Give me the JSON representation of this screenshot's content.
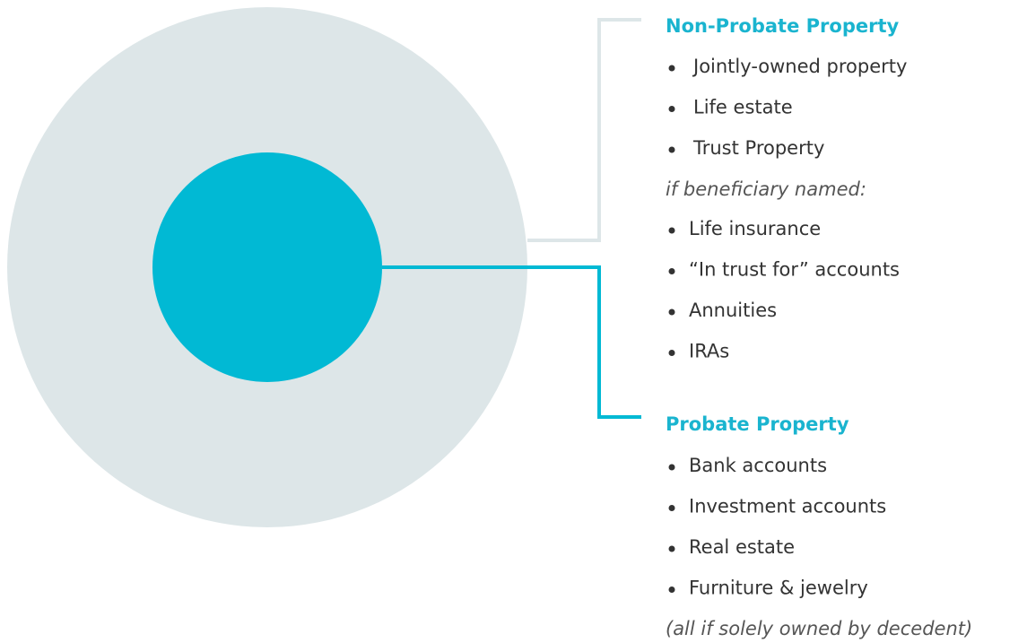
{
  "non_probate": {
    "title": "Non-Probate Property",
    "items": [
      "Jointly-owned property",
      "Life estate",
      "Trust Property"
    ],
    "condition": "if beneficiary named:",
    "conditional_items": [
      "Life insurance",
      "“In trust for” accounts",
      "Annuities",
      "IRAs"
    ]
  },
  "probate": {
    "title": "Probate Property",
    "items": [
      "Bank accounts",
      "Investment accounts",
      "Real estate",
      "Furniture & jewelry"
    ],
    "note": "(all if solely owned by decedent)"
  }
}
